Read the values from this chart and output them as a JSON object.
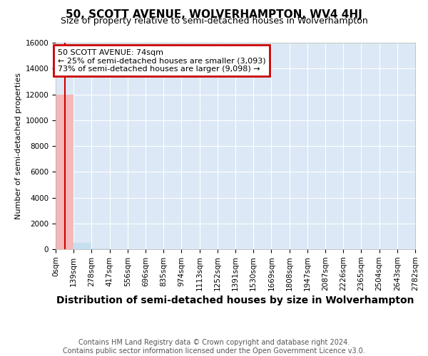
{
  "title": "50, SCOTT AVENUE, WOLVERHAMPTON, WV4 4HJ",
  "subtitle": "Size of property relative to semi-detached houses in Wolverhampton",
  "xlabel": "Distribution of semi-detached houses by size in Wolverhampton",
  "ylabel": "Number of semi-detached properties",
  "footer_line1": "Contains HM Land Registry data © Crown copyright and database right 2024.",
  "footer_line2": "Contains public sector information licensed under the Open Government Licence v3.0.",
  "bin_edges": [
    0,
    139,
    278,
    417,
    556,
    696,
    835,
    974,
    1113,
    1252,
    1391,
    1530,
    1669,
    1808,
    1947,
    2087,
    2226,
    2365,
    2504,
    2643,
    2782
  ],
  "bin_labels": [
    "0sqm",
    "139sqm",
    "278sqm",
    "417sqm",
    "556sqm",
    "696sqm",
    "835sqm",
    "974sqm",
    "1113sqm",
    "1252sqm",
    "1391sqm",
    "1530sqm",
    "1669sqm",
    "1808sqm",
    "1947sqm",
    "2087sqm",
    "2226sqm",
    "2365sqm",
    "2504sqm",
    "2643sqm",
    "2782sqm"
  ],
  "bar_heights": [
    11950,
    480,
    55,
    18,
    10,
    6,
    4,
    3,
    2,
    2,
    1,
    1,
    1,
    1,
    0,
    0,
    0,
    0,
    0,
    0
  ],
  "highlight_bar_index": 0,
  "bar_color": "#c5dff0",
  "highlight_bar_color": "#f5b8b8",
  "property_size": 74,
  "vline_color": "#cc0000",
  "ylim": [
    0,
    16000
  ],
  "yticks": [
    0,
    2000,
    4000,
    6000,
    8000,
    10000,
    12000,
    14000,
    16000
  ],
  "annotation_text_line1": "50 SCOTT AVENUE: 74sqm",
  "annotation_text_line2": "← 25% of semi-detached houses are smaller (3,093)",
  "annotation_text_line3": "73% of semi-detached houses are larger (9,098) →",
  "annotation_box_color": "#cc0000",
  "fig_background_color": "#ffffff",
  "plot_background_color": "#dce8f5",
  "grid_color": "#ffffff",
  "title_fontsize": 11,
  "subtitle_fontsize": 9,
  "xlabel_fontsize": 10,
  "ylabel_fontsize": 8,
  "tick_fontsize": 7.5,
  "footer_fontsize": 7,
  "annotation_fontsize": 8
}
